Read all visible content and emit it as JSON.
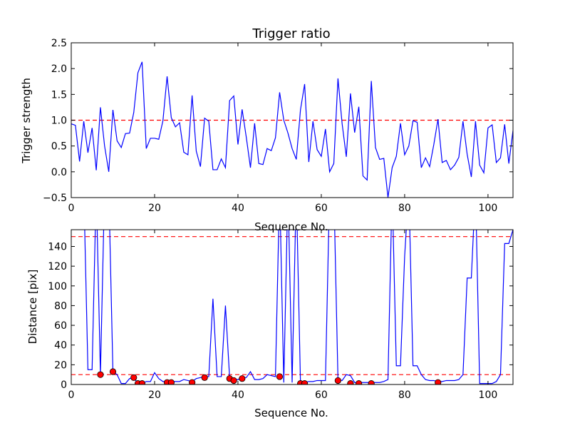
{
  "chart_data": [
    {
      "type": "line",
      "title": "Trigger ratio",
      "xlabel": "Sequence No.",
      "ylabel": "Trigger strength",
      "xlim": [
        0,
        106
      ],
      "ylim": [
        -0.5,
        2.5
      ],
      "xticks": [
        0,
        20,
        40,
        60,
        80,
        100
      ],
      "yticks": [
        -0.5,
        0.0,
        0.5,
        1.0,
        1.5,
        2.0,
        2.5
      ],
      "ytick_labels": [
        "−0.5",
        "0.0",
        "0.5",
        "1.0",
        "1.5",
        "2.0",
        "2.5"
      ],
      "threshold": {
        "value": 1.0,
        "color": "#ff0000",
        "style": "dashed"
      },
      "series": [
        {
          "color": "#0000ff",
          "x": [
            0,
            1,
            2,
            3,
            4,
            5,
            6,
            7,
            8,
            9,
            10,
            11,
            12,
            13,
            14,
            15,
            16,
            17,
            18,
            19,
            20,
            21,
            22,
            23,
            24,
            25,
            26,
            27,
            28,
            29,
            30,
            31,
            32,
            33,
            34,
            35,
            36,
            37,
            38,
            39,
            40,
            41,
            42,
            43,
            44,
            45,
            46,
            47,
            48,
            49,
            50,
            51,
            52,
            53,
            54,
            55,
            56,
            57,
            58,
            59,
            60,
            61,
            62,
            63,
            64,
            65,
            66,
            67,
            68,
            69,
            70,
            71,
            72,
            73,
            74,
            75,
            76,
            77,
            78,
            79,
            80,
            81,
            82,
            83,
            84,
            85,
            86,
            87,
            88,
            89,
            90,
            91,
            92,
            93,
            94,
            95,
            96,
            97,
            98,
            99,
            100,
            101,
            102,
            103,
            104,
            105,
            106
          ],
          "values": [
            0.93,
            0.9,
            0.2,
            0.98,
            0.37,
            0.85,
            0.03,
            1.25,
            0.5,
            0.0,
            1.2,
            0.6,
            0.47,
            0.74,
            0.75,
            1.15,
            1.92,
            2.13,
            0.45,
            0.65,
            0.65,
            0.63,
            0.99,
            1.85,
            1.05,
            0.87,
            0.95,
            0.38,
            0.33,
            1.48,
            0.4,
            0.1,
            1.04,
            0.98,
            0.04,
            0.04,
            0.25,
            0.08,
            1.38,
            1.47,
            0.53,
            1.21,
            0.67,
            0.08,
            0.94,
            0.16,
            0.14,
            0.45,
            0.41,
            0.66,
            1.54,
            1.0,
            0.75,
            0.45,
            0.24,
            1.2,
            1.7,
            0.19,
            0.98,
            0.43,
            0.3,
            0.83,
            0.0,
            0.16,
            1.81,
            0.93,
            0.29,
            1.52,
            0.76,
            1.26,
            -0.08,
            -0.16,
            1.76,
            0.47,
            0.24,
            0.26,
            -0.5,
            0.08,
            0.3,
            0.94,
            0.33,
            0.5,
            0.99,
            0.96,
            0.08,
            0.27,
            0.1,
            0.53,
            1.02,
            0.18,
            0.22,
            0.04,
            0.13,
            0.28,
            0.98,
            0.34,
            -0.1,
            0.98,
            0.13,
            -0.02,
            0.85,
            0.91,
            0.18,
            0.27,
            0.92,
            0.16,
            0.8
          ]
        }
      ]
    },
    {
      "type": "line",
      "title": "",
      "xlabel": "Sequence No.",
      "ylabel": "Distance [pix]",
      "xlim": [
        0,
        106
      ],
      "ylim": [
        0,
        157
      ],
      "xticks": [
        0,
        20,
        40,
        60,
        80,
        100
      ],
      "yticks": [
        0,
        20,
        40,
        60,
        80,
        100,
        120,
        140
      ],
      "thresholds": [
        {
          "value": 150,
          "color": "#ff0000",
          "style": "dashed"
        },
        {
          "value": 10,
          "color": "#ff0000",
          "style": "dashed"
        }
      ],
      "series": [
        {
          "color": "#0000ff",
          "x": [
            3,
            4,
            5,
            6,
            7,
            8,
            9,
            10,
            11,
            12,
            13,
            14,
            15,
            16,
            17,
            18,
            19,
            20,
            21,
            22,
            23,
            24,
            25,
            26,
            27,
            28,
            29,
            30,
            31,
            32,
            33,
            34,
            35,
            36,
            37,
            38,
            39,
            40,
            41,
            42,
            43,
            44,
            45,
            46,
            47,
            48,
            49,
            50,
            51,
            52,
            53,
            54,
            55,
            56,
            57,
            58,
            59,
            60,
            61,
            62,
            63,
            64,
            65,
            66,
            67,
            68,
            69,
            70,
            71,
            72,
            73,
            74,
            75,
            76,
            77,
            78,
            79,
            80,
            81,
            82,
            83,
            84,
            85,
            86,
            87,
            88,
            89,
            90,
            91,
            92,
            93,
            94,
            95,
            96,
            97,
            98,
            99,
            100,
            101,
            102,
            103,
            104,
            105,
            106
          ],
          "values": [
            200,
            15,
            15,
            200,
            10,
            200,
            200,
            13,
            10,
            1,
            1,
            6,
            7,
            1,
            1,
            3,
            3,
            12,
            6,
            3,
            3,
            3,
            3,
            3,
            5,
            4,
            3,
            6,
            7,
            8,
            8,
            87,
            8,
            8,
            80,
            7,
            5,
            5,
            7,
            7,
            13,
            5,
            5,
            6,
            10,
            9,
            8,
            200,
            2,
            200,
            2,
            200,
            2,
            2,
            3,
            3,
            4,
            4,
            4,
            200,
            200,
            5,
            4,
            10,
            9,
            2,
            2,
            2,
            2,
            2,
            2,
            2,
            3,
            5,
            200,
            19,
            19,
            130,
            200,
            19,
            19,
            10,
            5,
            4,
            4,
            3,
            3,
            4,
            4,
            4,
            5,
            10,
            108,
            108,
            200,
            1,
            1,
            1,
            1,
            3,
            10,
            143,
            143,
            157
          ]
        },
        {
          "name": "",
          "color": "#ff0000",
          "marker": "circle",
          "x": [
            7,
            10,
            15,
            16,
            17,
            23,
            24,
            29,
            32,
            38,
            39,
            41,
            50,
            55,
            56,
            64,
            67,
            69,
            72,
            88
          ],
          "values": [
            10,
            13,
            7,
            1,
            1,
            2,
            2,
            2,
            7,
            6,
            4,
            6,
            8,
            1,
            1,
            4,
            1,
            1,
            1,
            2
          ]
        }
      ]
    }
  ]
}
